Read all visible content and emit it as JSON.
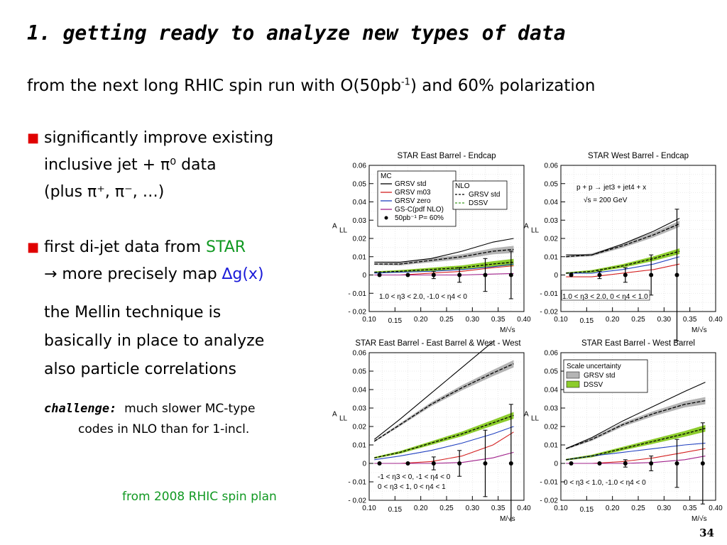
{
  "slide": {
    "title": "1. getting ready to analyze new types of data",
    "subtitle_pre": "from the next long RHIC spin run with O(50pb",
    "subtitle_sup": "-1",
    "subtitle_post": ") and 60% polarization",
    "bullet1": {
      "line1": "significantly improve existing",
      "line2": "inclusive jet + π⁰ data",
      "line3": "(plus π⁺, π⁻, …)"
    },
    "bullet2": {
      "line1_pre": "first di-jet data from ",
      "line1_star": "STAR",
      "line2_pre": "→ more precisely map ",
      "line2_dg": "∆g(x)"
    },
    "mellin": [
      "the Mellin technique is",
      "basically in place to analyze",
      "also particle correlations"
    ],
    "challenge_label": "challenge:",
    "challenge_line1": "much slower MC-type",
    "challenge_line2": "codes in NLO than for 1-incl.",
    "source": "from 2008 RHIC spin plan",
    "page_number": "34"
  },
  "colors": {
    "bullet": "#e00000",
    "star": "#119922",
    "dg": "#1a1ad8",
    "grsv_std": "#000000",
    "grsv_m03": "#d42020",
    "grsv_zero": "#2040c0",
    "gsc": "#a0208a",
    "band_std": "#b4b4b4",
    "band_dssv": "#8ccc2c"
  },
  "chart_data": [
    {
      "type": "line",
      "title": "STAR East Barrel - Endcap",
      "xlabel": "M/√s",
      "ylabel": "A_LL",
      "xlim": [
        0.1,
        0.4
      ],
      "ylim": [
        -0.02,
        0.06
      ],
      "xticks": [
        "0.10",
        "0.15",
        "0.20",
        "0.25",
        "0.30",
        "0.35",
        "0.40"
      ],
      "yticks": [
        "0.06",
        "0.05",
        "0.04",
        "0.03",
        "0.02",
        "0.01",
        "0",
        "- 0.01",
        "- 0.02"
      ],
      "annotation": "1.0 < η3 < 2.0, -1.0 < η4 < 0",
      "legend": {
        "mc_title": "MC",
        "mc": [
          "GRSV std",
          "GRSV m03",
          "GRSV zero",
          "GS-C(pdf NLO)",
          "50pb⁻¹ P= 60%"
        ],
        "nlo_title": "NLO",
        "nlo": [
          "GRSV std",
          "DSSV"
        ]
      },
      "series": [
        {
          "name": "GRSV std",
          "x": [
            0.11,
            0.16,
            0.22,
            0.28,
            0.34,
            0.38
          ],
          "values": [
            0.007,
            0.007,
            0.009,
            0.013,
            0.018,
            0.02
          ]
        },
        {
          "name": "GRSV m03",
          "x": [
            0.11,
            0.16,
            0.22,
            0.28,
            0.34,
            0.38
          ],
          "values": [
            0.0,
            0.0,
            0.001,
            0.002,
            0.004,
            0.005
          ]
        },
        {
          "name": "GRSV zero",
          "x": [
            0.11,
            0.16,
            0.22,
            0.28,
            0.34,
            0.38
          ],
          "values": [
            0.001,
            0.0015,
            0.002,
            0.003,
            0.0045,
            0.006
          ]
        },
        {
          "name": "GS-C(pdf NLO)",
          "x": [
            0.11,
            0.16,
            0.22,
            0.28,
            0.34,
            0.38
          ],
          "values": [
            0.0,
            0.0,
            0.0,
            0.0,
            0.0005,
            0.0008
          ]
        },
        {
          "name": "NLO GRSV std",
          "x": [
            0.11,
            0.16,
            0.22,
            0.28,
            0.34,
            0.38
          ],
          "values": [
            0.006,
            0.006,
            0.008,
            0.01,
            0.013,
            0.014
          ]
        },
        {
          "name": "NLO DSSV",
          "x": [
            0.11,
            0.16,
            0.22,
            0.28,
            0.34,
            0.38
          ],
          "values": [
            0.0015,
            0.002,
            0.003,
            0.004,
            0.006,
            0.007
          ]
        },
        {
          "name": "50pb⁻¹ P= 60%",
          "x": [
            0.12,
            0.175,
            0.225,
            0.275,
            0.325,
            0.375
          ],
          "values": [
            0,
            0,
            0,
            0,
            0,
            0
          ],
          "errors": [
            0.0005,
            0.001,
            0.002,
            0.004,
            0.009,
            0.013
          ]
        }
      ]
    },
    {
      "type": "line",
      "title": "STAR West Barrel - Endcap",
      "xlabel": "M/√s",
      "ylabel": "A_LL",
      "xlim": [
        0.1,
        0.4
      ],
      "ylim": [
        -0.02,
        0.06
      ],
      "xticks": [
        "0.10",
        "0.15",
        "0.20",
        "0.25",
        "0.30",
        "0.35",
        "0.40"
      ],
      "yticks": [
        "0.06",
        "0.05",
        "0.04",
        "0.03",
        "0.02",
        "0.01",
        "0",
        "- 0.01",
        "- 0.02"
      ],
      "annotation": "1.0 < η3 < 2.0, 0 < η4 < 1.0",
      "process": "p + p → jet3 + jet4 + x",
      "energy": "√s = 200 GeV",
      "series": [
        {
          "name": "GRSV std",
          "x": [
            0.11,
            0.16,
            0.22,
            0.28,
            0.33
          ],
          "values": [
            0.011,
            0.011,
            0.017,
            0.024,
            0.031
          ]
        },
        {
          "name": "GRSV m03",
          "x": [
            0.11,
            0.16,
            0.22,
            0.28,
            0.33
          ],
          "values": [
            -0.001,
            -0.001,
            0.001,
            0.003,
            0.006
          ]
        },
        {
          "name": "GRSV zero",
          "x": [
            0.11,
            0.16,
            0.22,
            0.28,
            0.33
          ],
          "values": [
            0.001,
            0.001,
            0.003,
            0.006,
            0.01
          ]
        },
        {
          "name": "NLO GRSV std",
          "x": [
            0.11,
            0.16,
            0.22,
            0.28,
            0.33
          ],
          "values": [
            0.01,
            0.011,
            0.016,
            0.022,
            0.028
          ]
        },
        {
          "name": "NLO DSSV",
          "x": [
            0.11,
            0.16,
            0.22,
            0.28,
            0.33
          ],
          "values": [
            0.001,
            0.002,
            0.005,
            0.009,
            0.013
          ]
        },
        {
          "name": "50pb⁻¹ P= 60%",
          "x": [
            0.12,
            0.175,
            0.225,
            0.275,
            0.325
          ],
          "values": [
            0,
            0,
            0,
            0,
            0
          ],
          "errors": [
            0.0005,
            0.002,
            0.004,
            0.011,
            0.036
          ]
        }
      ]
    },
    {
      "type": "line",
      "title": "STAR East Barrel - East Barrel & West - West",
      "xlabel": "M/√s",
      "ylabel": "A_LL",
      "xlim": [
        0.1,
        0.4
      ],
      "ylim": [
        -0.02,
        0.06
      ],
      "xticks": [
        "0.10",
        "0.15",
        "0.20",
        "0.25",
        "0.30",
        "0.35",
        "0.40"
      ],
      "yticks": [
        "0.06",
        "0.05",
        "0.04",
        "0.03",
        "0.02",
        "0.01",
        "0",
        "- 0.01",
        "- 0.02"
      ],
      "annotation_lines": [
        "-1 < η3 < 0, -1 < η4 < 0",
        "0 < η3 < 1, 0 < η4 < 1"
      ],
      "series": [
        {
          "name": "GRSV std",
          "x": [
            0.11,
            0.16,
            0.22,
            0.28,
            0.34
          ],
          "values": [
            0.013,
            0.024,
            0.038,
            0.052,
            0.066
          ]
        },
        {
          "name": "GRSV m03",
          "x": [
            0.11,
            0.16,
            0.22,
            0.28,
            0.34,
            0.38
          ],
          "values": [
            0.0,
            0.0,
            0.001,
            0.004,
            0.01,
            0.017
          ]
        },
        {
          "name": "GRSV zero",
          "x": [
            0.11,
            0.16,
            0.22,
            0.28,
            0.34,
            0.38
          ],
          "values": [
            0.002,
            0.004,
            0.007,
            0.011,
            0.016,
            0.02
          ]
        },
        {
          "name": "GS-C(pdf NLO)",
          "x": [
            0.11,
            0.16,
            0.22,
            0.28,
            0.34,
            0.38
          ],
          "values": [
            0.0,
            0.0,
            0.0,
            0.0005,
            0.003,
            0.006
          ]
        },
        {
          "name": "NLO GRSV std",
          "x": [
            0.11,
            0.16,
            0.22,
            0.28,
            0.34,
            0.38
          ],
          "values": [
            0.012,
            0.021,
            0.032,
            0.041,
            0.049,
            0.054
          ]
        },
        {
          "name": "NLO DSSV",
          "x": [
            0.11,
            0.16,
            0.22,
            0.28,
            0.34,
            0.38
          ],
          "values": [
            0.003,
            0.006,
            0.011,
            0.016,
            0.022,
            0.026
          ]
        },
        {
          "name": "50pb⁻¹ P= 60%",
          "x": [
            0.12,
            0.175,
            0.225,
            0.275,
            0.325,
            0.375
          ],
          "values": [
            0,
            0,
            0,
            0,
            0,
            0
          ],
          "errors": [
            0.0005,
            0.001,
            0.0035,
            0.007,
            0.018,
            0.032
          ]
        }
      ]
    },
    {
      "type": "line",
      "title": "STAR East Barrel - West Barrel",
      "xlabel": "M/√s",
      "ylabel": "A_LL",
      "xlim": [
        0.1,
        0.4
      ],
      "ylim": [
        -0.02,
        0.06
      ],
      "xticks": [
        "0.10",
        "0.15",
        "0.20",
        "0.25",
        "0.30",
        "0.35",
        "0.40"
      ],
      "yticks": [
        "0.06",
        "0.05",
        "0.04",
        "0.03",
        "0.02",
        "0.01",
        "0",
        "- 0.01",
        "- 0.02"
      ],
      "annotation": "0 < η3 < 1.0, -1.0 < η4 < 0",
      "legend": {
        "title": "Scale uncertainty",
        "entries": [
          "GRSV std",
          "DSSV"
        ]
      },
      "series": [
        {
          "name": "GRSV std",
          "x": [
            0.11,
            0.16,
            0.22,
            0.28,
            0.34,
            0.38
          ],
          "values": [
            0.008,
            0.014,
            0.023,
            0.031,
            0.039,
            0.044
          ]
        },
        {
          "name": "GRSV m03",
          "x": [
            0.11,
            0.16,
            0.22,
            0.28,
            0.34,
            0.38
          ],
          "values": [
            0.0,
            0.0,
            0.001,
            0.003,
            0.006,
            0.008
          ]
        },
        {
          "name": "GRSV zero",
          "x": [
            0.11,
            0.16,
            0.22,
            0.28,
            0.34,
            0.38
          ],
          "values": [
            0.002,
            0.004,
            0.006,
            0.008,
            0.01,
            0.011
          ]
        },
        {
          "name": "GS-C(pdf NLO)",
          "x": [
            0.11,
            0.16,
            0.22,
            0.28,
            0.34,
            0.38
          ],
          "values": [
            0.0,
            0.0,
            0.0,
            0.0005,
            0.002,
            0.004
          ]
        },
        {
          "name": "NLO GRSV std",
          "x": [
            0.11,
            0.16,
            0.22,
            0.28,
            0.34,
            0.38
          ],
          "values": [
            0.008,
            0.013,
            0.021,
            0.027,
            0.032,
            0.034
          ]
        },
        {
          "name": "NLO DSSV",
          "x": [
            0.11,
            0.16,
            0.22,
            0.28,
            0.34,
            0.38
          ],
          "values": [
            0.002,
            0.004,
            0.008,
            0.012,
            0.016,
            0.019
          ]
        },
        {
          "name": "50pb⁻¹ P= 60%",
          "x": [
            0.12,
            0.175,
            0.225,
            0.275,
            0.325,
            0.375
          ],
          "values": [
            0,
            0,
            0,
            0,
            0,
            0
          ],
          "errors": [
            0.0005,
            0.001,
            0.002,
            0.004,
            0.013,
            0.022
          ]
        }
      ]
    }
  ]
}
